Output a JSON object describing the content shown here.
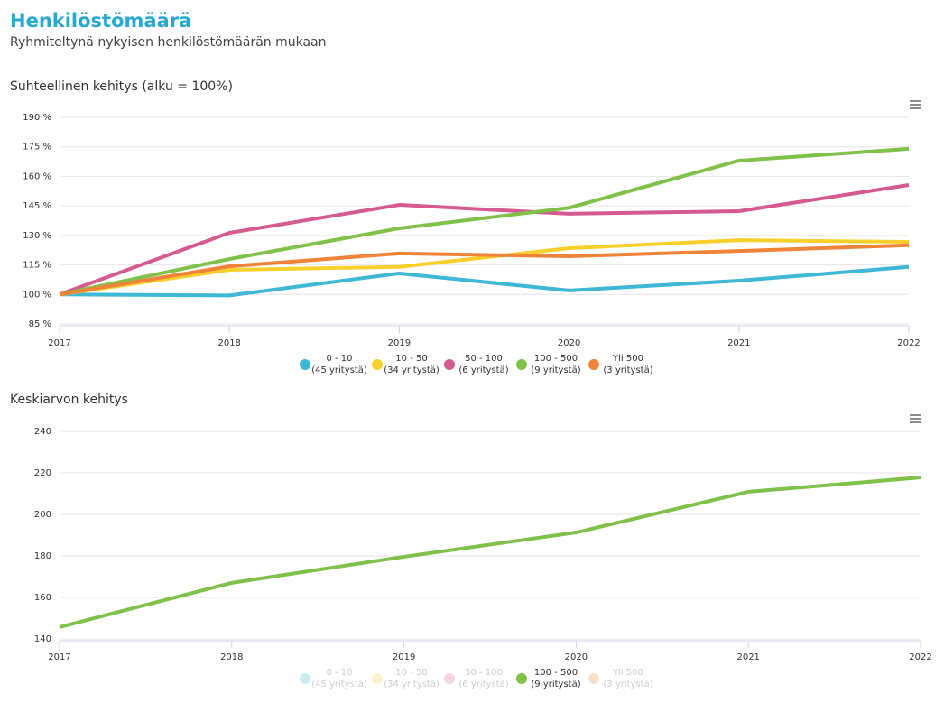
{
  "header": {
    "title": "Henkilöstömäärä",
    "subtitle": "Ryhmiteltynä nykyisen henkilöstömäärän mukaan"
  },
  "chart_data": [
    {
      "type": "line",
      "title": "Suhteellinen kehitys (alku = 100%)",
      "x": [
        2017,
        2018,
        2019,
        2020,
        2021,
        2022
      ],
      "xlim": [
        2017,
        2022
      ],
      "xticks": [
        2017,
        2018,
        2019,
        2020,
        2021,
        2022
      ],
      "ylim": [
        85,
        190
      ],
      "yticks": [
        {
          "value": 85,
          "label": "85 %"
        },
        {
          "value": 100,
          "label": "100 %"
        },
        {
          "value": 115,
          "label": "115 %"
        },
        {
          "value": 130,
          "label": "130 %"
        },
        {
          "value": 145,
          "label": "145 %"
        },
        {
          "value": 160,
          "label": "160 %"
        },
        {
          "value": 175,
          "label": "175 %"
        },
        {
          "value": 190,
          "label": "190 %"
        }
      ],
      "grid": true,
      "series": [
        {
          "name": "0 - 10",
          "count_label": "(45 yritystä)",
          "color": "#3eb8d5",
          "values": [
            100,
            99.5,
            110.7,
            102,
            107,
            114
          ]
        },
        {
          "name": "10 - 50",
          "count_label": "(34 yritystä)",
          "color": "#f7d02c",
          "values": [
            100,
            112.5,
            114,
            123.5,
            127.6,
            126.7
          ]
        },
        {
          "name": "50 - 100",
          "count_label": "(6 yritystä)",
          "color": "#d45a90",
          "values": [
            100,
            131.3,
            145.5,
            141,
            142.3,
            155.6
          ]
        },
        {
          "name": "100 - 500",
          "count_label": "(9 yritystä)",
          "color": "#80c14a",
          "values": [
            100,
            118,
            133.6,
            144,
            168,
            174
          ]
        },
        {
          "name": "Yli 500",
          "count_label": "(3 yritystä)",
          "color": "#ef8439",
          "values": [
            100,
            114.3,
            120.8,
            119.4,
            122.1,
            125
          ]
        }
      ]
    },
    {
      "type": "line",
      "title": "Keskiarvon kehitys",
      "x": [
        2017,
        2018,
        2019,
        2020,
        2021,
        2022
      ],
      "xlim": [
        2017,
        2022
      ],
      "xticks": [
        2017,
        2018,
        2019,
        2020,
        2021,
        2022
      ],
      "ylim": [
        140,
        240
      ],
      "yticks": [
        140,
        160,
        180,
        200,
        220,
        240
      ],
      "grid": true,
      "series": [
        {
          "name": "0 - 10",
          "count_label": "(45 yritystä)",
          "color": "#3eb8d5",
          "hidden": true
        },
        {
          "name": "10 - 50",
          "count_label": "(34 yritystä)",
          "color": "#f7d02c",
          "hidden": true
        },
        {
          "name": "50 - 100",
          "count_label": "(6 yritystä)",
          "color": "#d45a90",
          "hidden": true
        },
        {
          "name": "100 - 500",
          "count_label": "(9 yritystä)",
          "color": "#80c14a",
          "values": [
            145.7,
            167,
            179.6,
            191.3,
            210.9,
            217.8
          ]
        },
        {
          "name": "Yli 500",
          "count_label": "(3 yritystä)",
          "color": "#ef8439",
          "hidden": true
        }
      ]
    }
  ]
}
